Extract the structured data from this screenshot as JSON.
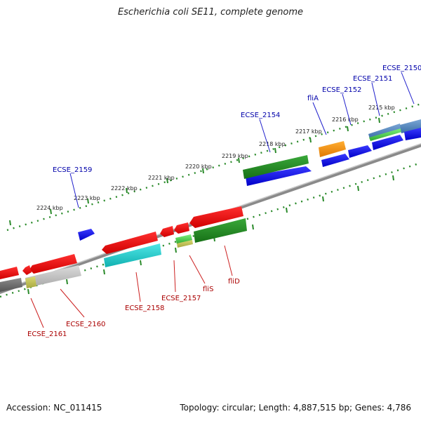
{
  "title": "Escherichia coli SE11, complete genome",
  "footer": {
    "accession": "Accession: NC_011415",
    "summary": "Topology: circular; Length: 4,887,515 bp; Genes: 4,786"
  },
  "kbp_labels": [
    "2215 kbp",
    "2216 kbp",
    "2217 kbp",
    "2218 kbp",
    "2219 kbp",
    "2220 kbp",
    "2221 kbp",
    "2222 kbp",
    "2223 kbp",
    "2224 kbp"
  ],
  "gene_labels_top": [
    "ECSE_2150",
    "ECSE_2151",
    "ECSE_2152",
    "fliA",
    "ECSE_2154",
    "ECSE_2159"
  ],
  "gene_labels_bottom": [
    "fliD",
    "fliS",
    "ECSE_2157",
    "ECSE_2158",
    "ECSE_2160",
    "ECSE_2161"
  ],
  "colors": {
    "plus_strand_cds": "#0000ee",
    "minus_strand_cds": "#ee0000",
    "rna_a": "#1f8a1f",
    "rna_b": "#16c2c2",
    "misc": "#ff8c00",
    "top_label": "#0000aa",
    "bottom_label": "#aa0000",
    "tick": "#2a8a2a",
    "backbone": "#8a8a8a"
  }
}
